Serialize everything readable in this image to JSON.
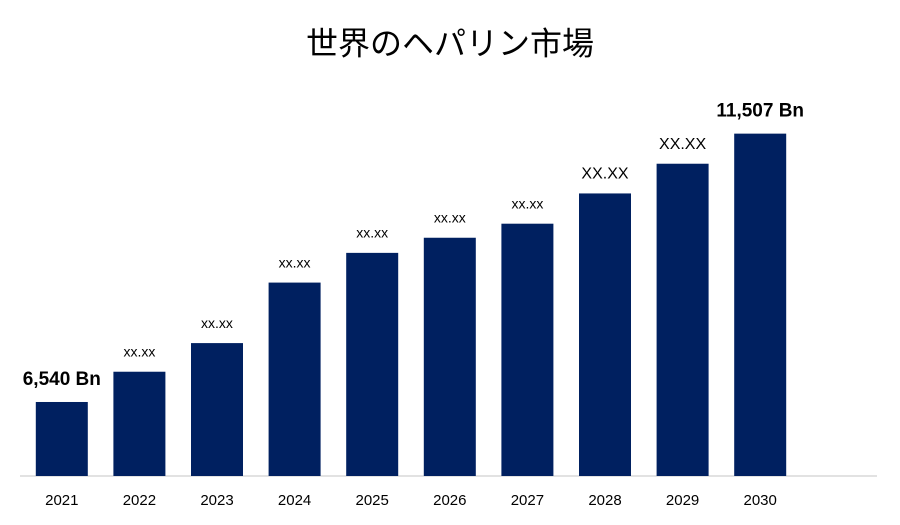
{
  "chart_data": {
    "type": "bar",
    "title": "世界のヘパリン市場",
    "categories": [
      "2021",
      "2022",
      "2023",
      "2024",
      "2025",
      "2026",
      "2027",
      "2028",
      "2029",
      "2030"
    ],
    "values": [
      6540,
      7100,
      7630,
      8750,
      9300,
      9580,
      9840,
      10400,
      10950,
      11507
    ],
    "value_labels": [
      "6,540 Bn",
      "xx.xx",
      "xx.xx",
      "xx.xx",
      "xx.xx",
      "xx.xx",
      "xx.xx",
      "XX.XX",
      "XX.XX",
      "11,507 Bn"
    ],
    "color": "#002060",
    "ylim": [
      5170,
      12000
    ]
  }
}
